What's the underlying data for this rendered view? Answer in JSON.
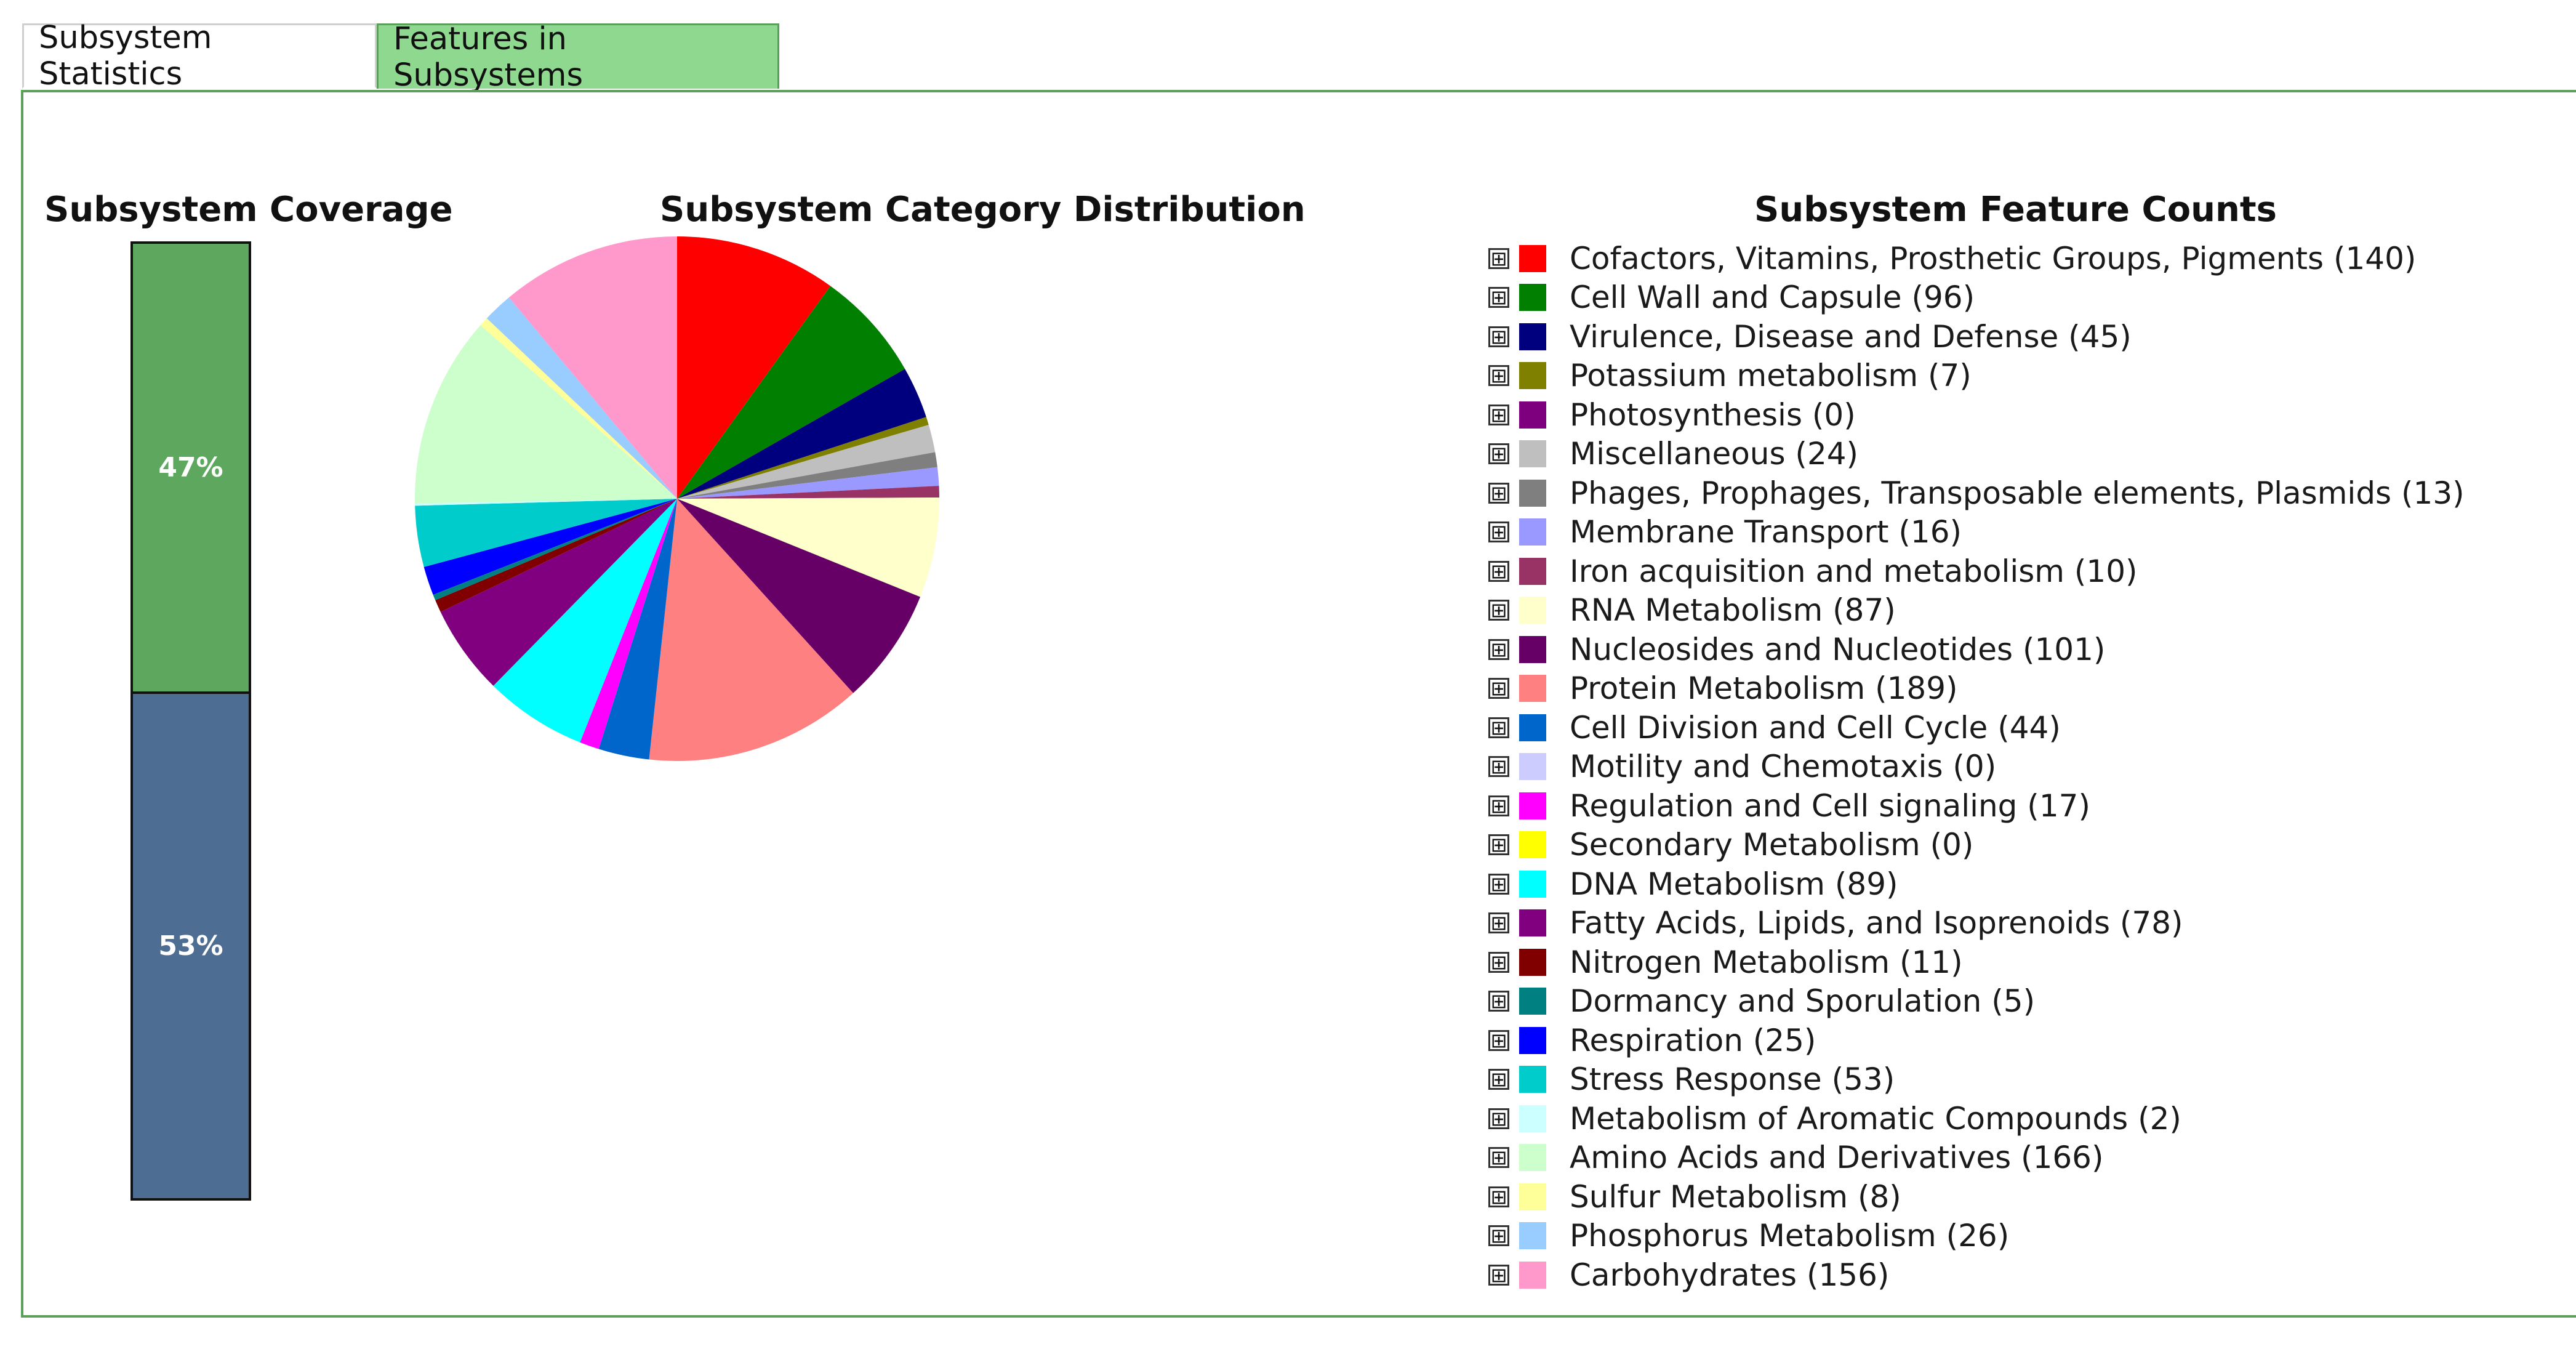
{
  "tabs": [
    {
      "label": "Subsystem Statistics",
      "active": true
    },
    {
      "label": "Features in Subsystems",
      "active": false
    }
  ],
  "coverage": {
    "title": "Subsystem Coverage",
    "segments": [
      {
        "label": "47%",
        "value": 47,
        "color": "#5ea75e"
      },
      {
        "label": "53%",
        "value": 53,
        "color": "#4d6d92"
      }
    ]
  },
  "distribution": {
    "title": "Subsystem Category Distribution"
  },
  "feature_counts": {
    "title": "Subsystem Feature Counts",
    "expand_glyph": "⊞"
  },
  "chart_data": {
    "type": "pie",
    "title": "Subsystem Category Distribution",
    "categories": [
      {
        "name": "Cofactors, Vitamins, Prosthetic Groups, Pigments",
        "value": 140,
        "color": "#ff0000"
      },
      {
        "name": "Cell Wall and Capsule",
        "value": 96,
        "color": "#007f00"
      },
      {
        "name": "Virulence, Disease and Defense",
        "value": 45,
        "color": "#00007f"
      },
      {
        "name": "Potassium metabolism",
        "value": 7,
        "color": "#7f7f00"
      },
      {
        "name": "Photosynthesis",
        "value": 0,
        "color": "#7f007f"
      },
      {
        "name": "Miscellaneous",
        "value": 24,
        "color": "#bfbfbf"
      },
      {
        "name": "Phages, Prophages, Transposable elements, Plasmids",
        "value": 13,
        "color": "#7f7f7f"
      },
      {
        "name": "Membrane Transport",
        "value": 16,
        "color": "#9999ff"
      },
      {
        "name": "Iron acquisition and metabolism",
        "value": 10,
        "color": "#993366"
      },
      {
        "name": "RNA Metabolism",
        "value": 87,
        "color": "#ffffcc"
      },
      {
        "name": "Nucleosides and Nucleotides",
        "value": 101,
        "color": "#660066"
      },
      {
        "name": "Protein Metabolism",
        "value": 189,
        "color": "#ff8080"
      },
      {
        "name": "Cell Division and Cell Cycle",
        "value": 44,
        "color": "#0066cc"
      },
      {
        "name": "Motility and Chemotaxis",
        "value": 0,
        "color": "#ccccff"
      },
      {
        "name": "Regulation and Cell signaling",
        "value": 17,
        "color": "#ff00ff"
      },
      {
        "name": "Secondary Metabolism",
        "value": 0,
        "color": "#ffff00"
      },
      {
        "name": "DNA Metabolism",
        "value": 89,
        "color": "#00ffff"
      },
      {
        "name": "Fatty Acids, Lipids, and Isoprenoids",
        "value": 78,
        "color": "#800080"
      },
      {
        "name": "Nitrogen Metabolism",
        "value": 11,
        "color": "#800000"
      },
      {
        "name": "Dormancy and Sporulation",
        "value": 5,
        "color": "#008080"
      },
      {
        "name": "Respiration",
        "value": 25,
        "color": "#0000ff"
      },
      {
        "name": "Stress Response",
        "value": 53,
        "color": "#00cccc"
      },
      {
        "name": "Metabolism of Aromatic Compounds",
        "value": 2,
        "color": "#ccffff"
      },
      {
        "name": "Amino Acids and Derivatives",
        "value": 166,
        "color": "#ccffcc"
      },
      {
        "name": "Sulfur Metabolism",
        "value": 8,
        "color": "#ffff99"
      },
      {
        "name": "Phosphorus Metabolism",
        "value": 26,
        "color": "#99ccff"
      },
      {
        "name": "Carbohydrates",
        "value": 156,
        "color": "#ff99cc"
      }
    ]
  }
}
